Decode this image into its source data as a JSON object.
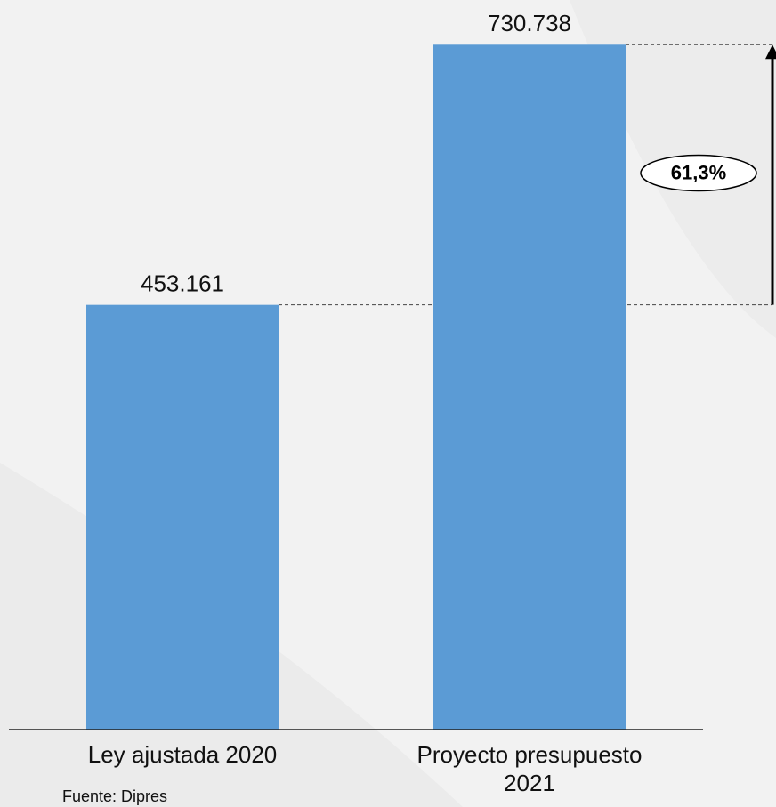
{
  "chart_data": {
    "type": "bar",
    "categories": [
      "Ley ajustada 2020",
      "Proyecto presupuesto 2021"
    ],
    "values": [
      453161,
      730738
    ],
    "value_labels": [
      "453.161",
      "730.738"
    ],
    "color": "#5b9bd5",
    "ylim": [
      0,
      750000
    ],
    "annotation": "61,3%",
    "source": "Fuente: Dipres"
  }
}
